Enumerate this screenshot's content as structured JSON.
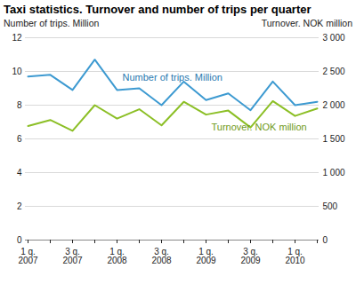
{
  "chart_data": {
    "type": "line",
    "title": "Taxi statistics. Turnover and number of trips per quarter",
    "categories": [
      "1 q.\n2007",
      null,
      "3 q.\n2007",
      null,
      "1 q.\n2008",
      null,
      "3 q.\n2008",
      null,
      "1 q.\n2009",
      null,
      "3 q.\n2009",
      null,
      "1 q.\n2010",
      null
    ],
    "y_label": "Number of trips. Million",
    "y2_label": "Turnover. NOK million",
    "series": [
      {
        "name": "Number of trips. Million",
        "color": "#3d9ad1",
        "values": [
          9.7,
          9.8,
          8.9,
          10.7,
          8.9,
          9.0,
          8.0,
          9.4,
          8.3,
          8.7,
          7.7,
          9.4,
          8.0,
          8.2
        ]
      },
      {
        "name": "Turnover. NOK million",
        "color": "#8cbf26",
        "axis": "y2",
        "values": [
          1690,
          1780,
          1620,
          2000,
          1800,
          1940,
          1700,
          2050,
          1860,
          1920,
          1670,
          2060,
          1840,
          1950
        ]
      }
    ],
    "ylim": [
      0,
      12
    ],
    "yticks": [
      0,
      2,
      4,
      6,
      8,
      10,
      12
    ],
    "y2lim": [
      0,
      3000
    ],
    "y2ticks": [
      0,
      500,
      {
        "value": 1000,
        "label": "1 000"
      },
      {
        "value": 1500,
        "label": "1 500"
      },
      {
        "value": 2000,
        "label": "2 000"
      },
      {
        "value": 2500,
        "label": "2 500"
      },
      {
        "value": 3000,
        "label": "3 000"
      }
    ],
    "grid": true
  }
}
